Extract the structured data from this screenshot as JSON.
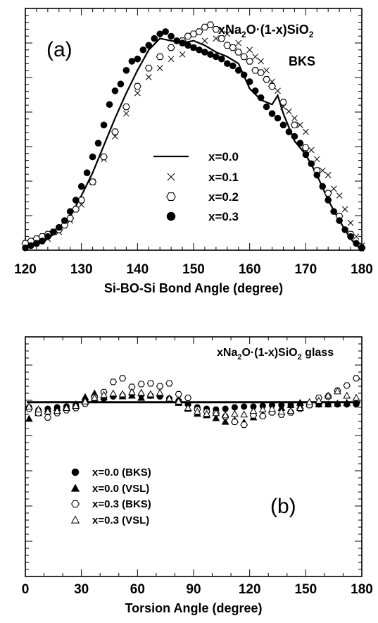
{
  "chart_data": [
    {
      "id": "a",
      "type": "scatter",
      "panel_label": "(a)",
      "title": "xNa2O·(1-x)SiO2",
      "subtitle": "BKS",
      "xlabel": "Si-BO-Si Bond Angle (degree)",
      "ylabel": "",
      "xlim": [
        120,
        180
      ],
      "xticks": [
        "120",
        "130",
        "140",
        "150",
        "160",
        "170",
        "180"
      ],
      "ylim": [
        0,
        1.0
      ],
      "legend_position": "center",
      "series": [
        {
          "name": "x=0.0",
          "marker": "line",
          "x": [
            120,
            122,
            124,
            126,
            128,
            130,
            132,
            134,
            136,
            138,
            140,
            142,
            144,
            146,
            148,
            150,
            152,
            154,
            156,
            158,
            160,
            162,
            163,
            164,
            165,
            166,
            168,
            170,
            172,
            174,
            176,
            178,
            180
          ],
          "y": [
            0.02,
            0.03,
            0.05,
            0.09,
            0.15,
            0.24,
            0.34,
            0.46,
            0.58,
            0.69,
            0.79,
            0.88,
            0.93,
            0.92,
            0.91,
            0.92,
            0.9,
            0.87,
            0.85,
            0.82,
            0.71,
            0.66,
            0.65,
            0.64,
            0.68,
            0.6,
            0.48,
            0.42,
            0.33,
            0.22,
            0.13,
            0.05,
            0.0
          ]
        },
        {
          "name": "x=0.1",
          "marker": "cross",
          "x": [
            120,
            122,
            124,
            126,
            128,
            130,
            132,
            134,
            136,
            138,
            140,
            142,
            144,
            146,
            148,
            150,
            152,
            154,
            156,
            158,
            160,
            161,
            162,
            163,
            164,
            165,
            166,
            167,
            168,
            169,
            170,
            171,
            172,
            173,
            174,
            175,
            176,
            177,
            178,
            179,
            180
          ],
          "y": [
            0.02,
            0.03,
            0.05,
            0.08,
            0.13,
            0.2,
            0.3,
            0.4,
            0.5,
            0.6,
            0.69,
            0.76,
            0.8,
            0.84,
            0.86,
            0.89,
            0.92,
            0.93,
            0.95,
            0.91,
            0.88,
            0.85,
            0.83,
            0.79,
            0.74,
            0.7,
            0.63,
            0.61,
            0.58,
            0.55,
            0.52,
            0.44,
            0.4,
            0.35,
            0.33,
            0.27,
            0.24,
            0.18,
            0.12,
            0.06,
            0.02
          ]
        },
        {
          "name": "x=0.2",
          "marker": "hexagon",
          "x": [
            120,
            121,
            122,
            123,
            124,
            125,
            126,
            127,
            128,
            129,
            130,
            132,
            134,
            136,
            138,
            140,
            142,
            144,
            146,
            148,
            149,
            150,
            151,
            152,
            153,
            154,
            155,
            156,
            157,
            158,
            159,
            160,
            161,
            162,
            163,
            164,
            166,
            168,
            170,
            172,
            174,
            176,
            178,
            180
          ],
          "y": [
            0.03,
            0.04,
            0.05,
            0.06,
            0.07,
            0.08,
            0.09,
            0.11,
            0.14,
            0.18,
            0.22,
            0.3,
            0.41,
            0.52,
            0.63,
            0.72,
            0.8,
            0.85,
            0.89,
            0.92,
            0.94,
            0.95,
            0.96,
            0.98,
            0.99,
            0.97,
            0.93,
            0.9,
            0.89,
            0.87,
            0.85,
            0.83,
            0.79,
            0.78,
            0.75,
            0.72,
            0.65,
            0.55,
            0.45,
            0.35,
            0.25,
            0.15,
            0.07,
            0.01
          ]
        },
        {
          "name": "x=0.3",
          "marker": "filled-circle",
          "x": [
            120,
            121,
            122,
            123,
            124,
            125,
            126,
            127,
            128,
            129,
            130,
            131,
            132,
            133,
            134,
            135,
            136,
            137,
            138,
            139,
            140,
            141,
            142,
            143,
            144,
            145,
            146,
            147,
            148,
            149,
            150,
            151,
            152,
            153,
            154,
            155,
            156,
            157,
            158,
            159,
            160,
            161,
            162,
            163,
            164,
            165,
            166,
            167,
            168,
            169,
            170,
            171,
            172,
            173,
            174,
            175,
            176,
            177,
            178,
            179,
            180
          ],
          "y": [
            0.01,
            0.02,
            0.03,
            0.04,
            0.06,
            0.08,
            0.1,
            0.13,
            0.17,
            0.22,
            0.28,
            0.34,
            0.41,
            0.47,
            0.55,
            0.64,
            0.7,
            0.73,
            0.79,
            0.83,
            0.84,
            0.88,
            0.9,
            0.93,
            0.95,
            0.96,
            0.94,
            0.92,
            0.91,
            0.9,
            0.89,
            0.88,
            0.87,
            0.86,
            0.85,
            0.84,
            0.82,
            0.81,
            0.79,
            0.77,
            0.74,
            0.7,
            0.67,
            0.63,
            0.6,
            0.58,
            0.55,
            0.52,
            0.5,
            0.47,
            0.42,
            0.38,
            0.33,
            0.28,
            0.22,
            0.17,
            0.13,
            0.09,
            0.06,
            0.03,
            0.01
          ]
        }
      ]
    },
    {
      "id": "b",
      "type": "scatter",
      "panel_label": "(b)",
      "title": "xNa2O·(1-x)SiO2 glass",
      "xlabel": "Torsion Angle (degree)",
      "ylabel": "",
      "xlim": [
        0,
        180
      ],
      "xticks": [
        "0",
        "30",
        "60",
        "90",
        "120",
        "150",
        "180"
      ],
      "ylim": [
        -2.4,
        0.9
      ],
      "reference_line": 0,
      "legend_position": "lower-left",
      "series": [
        {
          "name": "x=0.0 (BKS)",
          "marker": "filled-circle",
          "x": [
            2,
            7,
            12,
            17,
            22,
            27,
            32,
            37,
            42,
            47,
            52,
            57,
            62,
            67,
            72,
            77,
            82,
            87,
            92,
            97,
            102,
            107,
            112,
            117,
            122,
            127,
            132,
            137,
            142,
            147,
            152,
            157,
            162,
            167,
            172,
            177
          ],
          "y": [
            -0.07,
            -0.11,
            -0.09,
            -0.07,
            -0.06,
            -0.04,
            0.02,
            0.03,
            0.05,
            0.08,
            0.09,
            0.11,
            0.1,
            0.09,
            0.08,
            0.05,
            0.02,
            -0.03,
            -0.07,
            -0.09,
            -0.1,
            -0.09,
            -0.07,
            -0.06,
            -0.06,
            -0.05,
            -0.04,
            -0.04,
            -0.04,
            -0.03,
            -0.03,
            -0.03,
            -0.03,
            -0.03,
            -0.03,
            -0.03
          ]
        },
        {
          "name": "x=0.0 (VSL)",
          "marker": "filled-triangle",
          "x": [
            2,
            7,
            12,
            17,
            22,
            27,
            32,
            37,
            42,
            47,
            52,
            57,
            62,
            67,
            72,
            77,
            82,
            87,
            92,
            97,
            102,
            107,
            112,
            117,
            122,
            127,
            132,
            137,
            142,
            147,
            152,
            157,
            162,
            167,
            172,
            177
          ],
          "y": [
            -0.23,
            -0.15,
            -0.1,
            -0.08,
            -0.06,
            -0.03,
            0.07,
            0.12,
            0.07,
            0.11,
            0.08,
            0.09,
            0.06,
            0.09,
            0.12,
            0.05,
            -0.01,
            -0.09,
            -0.16,
            -0.18,
            -0.22,
            -0.27,
            -0.25,
            -0.28,
            -0.21,
            -0.17,
            -0.12,
            -0.08,
            -0.04,
            -0.01,
            -0.03,
            -0.03,
            -0.03,
            -0.02,
            -0.01,
            0.01
          ]
        },
        {
          "name": "x=0.3 (BKS)",
          "marker": "hexagon",
          "x": [
            2,
            7,
            12,
            17,
            22,
            27,
            32,
            37,
            42,
            47,
            52,
            57,
            62,
            67,
            72,
            77,
            82,
            87,
            92,
            97,
            102,
            107,
            112,
            117,
            122,
            127,
            132,
            137,
            142,
            147,
            152,
            157,
            162,
            167,
            172,
            177
          ],
          "y": [
            -0.09,
            -0.15,
            -0.21,
            -0.15,
            -0.11,
            -0.08,
            -0.02,
            0.07,
            0.14,
            0.28,
            0.33,
            0.21,
            0.25,
            0.26,
            0.22,
            0.26,
            0.11,
            0.06,
            -0.1,
            -0.13,
            -0.15,
            -0.2,
            -0.27,
            -0.31,
            -0.18,
            -0.19,
            -0.14,
            -0.17,
            -0.14,
            -0.09,
            -0.04,
            0.06,
            0.08,
            0.16,
            0.23,
            0.33
          ]
        },
        {
          "name": "x=0.3 (VSL)",
          "marker": "triangle",
          "x": [
            2,
            7,
            12,
            17,
            22,
            27,
            32,
            37,
            42,
            47,
            52,
            57,
            62,
            67,
            72,
            77,
            82,
            87,
            92,
            97,
            102,
            107,
            112,
            117,
            122,
            127,
            132,
            137,
            142,
            147,
            152,
            157,
            162,
            167,
            172,
            177
          ],
          "y": [
            -0.06,
            -0.1,
            -0.13,
            -0.12,
            -0.08,
            -0.05,
            0.01,
            0.06,
            0.1,
            0.12,
            0.11,
            0.14,
            0.13,
            0.11,
            0.13,
            0.05,
            0.01,
            -0.08,
            -0.13,
            -0.16,
            -0.15,
            -0.18,
            -0.16,
            -0.17,
            -0.12,
            -0.1,
            -0.09,
            -0.13,
            -0.12,
            -0.08,
            0.0,
            0.02,
            0.09,
            0.15,
            0.09,
            0.06
          ]
        }
      ]
    }
  ]
}
